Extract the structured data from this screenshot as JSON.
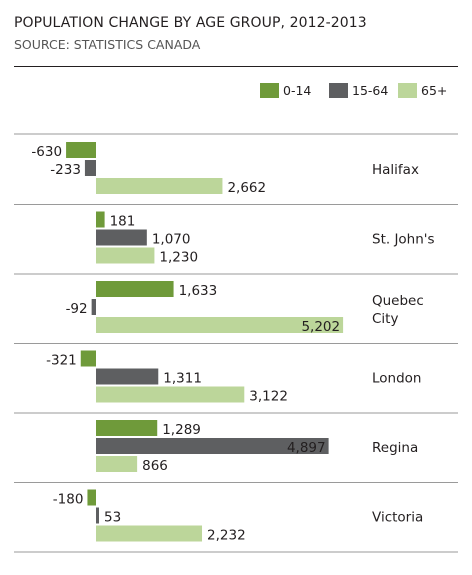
{
  "title": "POPULATION CHANGE BY AGE GROUP, 2012-2013",
  "subtitle": "SOURCE: STATISTICS CANADA",
  "colors": {
    "c0_14": "#6f9a3a",
    "c15_64": "#5e5f61",
    "c65": "#bcd69a",
    "divider": "#9a9a9a"
  },
  "legend": [
    {
      "label": "0-14",
      "color": "#6f9a3a"
    },
    {
      "label": "15-64",
      "color": "#5e5f61"
    },
    {
      "label": "65+",
      "color": "#bcd69a"
    }
  ],
  "chart_data": {
    "type": "bar",
    "orientation": "horizontal",
    "title": "POPULATION CHANGE BY AGE GROUP, 2012-2013",
    "subtitle": "SOURCE: STATISTICS CANADA",
    "categories": [
      "Halifax",
      "St. John's",
      "Quebec City",
      "London",
      "Regina",
      "Victoria"
    ],
    "category_lines": [
      [
        "Halifax"
      ],
      [
        "St. John's"
      ],
      [
        "Quebec",
        "City"
      ],
      [
        "London"
      ],
      [
        "Regina"
      ],
      [
        "Victoria"
      ]
    ],
    "series": [
      {
        "name": "0-14",
        "values": [
          -630,
          181,
          1633,
          -321,
          1289,
          -180
        ],
        "labels": [
          "-630",
          "181",
          "1,633",
          "-321",
          "1,289",
          "-180"
        ]
      },
      {
        "name": "15-64",
        "values": [
          -233,
          1070,
          -92,
          1311,
          4897,
          53
        ],
        "labels": [
          "-233",
          "1,070",
          "-92",
          "1,311",
          "4,897",
          "53"
        ]
      },
      {
        "name": "65+",
        "values": [
          2662,
          1230,
          5202,
          3122,
          866,
          2232
        ],
        "labels": [
          "2,662",
          "1,230",
          "5,202",
          "3,122",
          "866",
          "2,232"
        ]
      }
    ],
    "legend_position": "top-right",
    "grid": false
  }
}
